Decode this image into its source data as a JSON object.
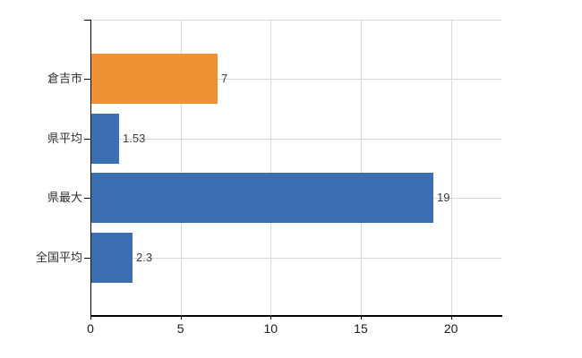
{
  "chart_data": {
    "type": "bar",
    "orientation": "horizontal",
    "title": "",
    "xlabel": "",
    "ylabel": "",
    "categories": [
      "倉吉市",
      "県平均",
      "県最大",
      "全国平均"
    ],
    "values": [
      7,
      1.53,
      19,
      2.3
    ],
    "value_labels": [
      "7",
      "1.53",
      "19",
      "2.3"
    ],
    "bar_colors": [
      "#EE9033",
      "#3B6FB2",
      "#3B6FB2",
      "#3B6FB2"
    ],
    "xticks": [
      0,
      5,
      10,
      15,
      20
    ],
    "xtick_labels": [
      "0",
      "5",
      "10",
      "15",
      "20"
    ],
    "xlim": [
      0,
      22.8
    ],
    "grid": true,
    "legend": false,
    "colors": {
      "grid": "#D9D9D9",
      "axis": "#000000",
      "text": "#2E2E2E",
      "background": "#FFFFFF"
    }
  }
}
